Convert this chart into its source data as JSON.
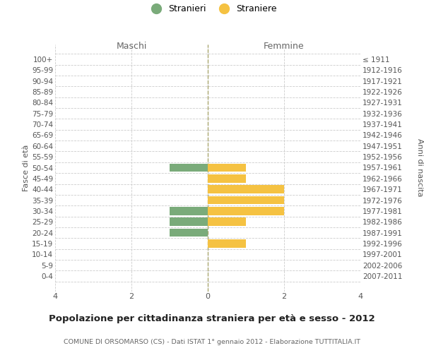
{
  "age_groups": [
    "100+",
    "95-99",
    "90-94",
    "85-89",
    "80-84",
    "75-79",
    "70-74",
    "65-69",
    "60-64",
    "55-59",
    "50-54",
    "45-49",
    "40-44",
    "35-39",
    "30-34",
    "25-29",
    "20-24",
    "15-19",
    "10-14",
    "5-9",
    "0-4"
  ],
  "birth_years": [
    "≤ 1911",
    "1912-1916",
    "1917-1921",
    "1922-1926",
    "1927-1931",
    "1932-1936",
    "1937-1941",
    "1942-1946",
    "1947-1951",
    "1952-1956",
    "1957-1961",
    "1962-1966",
    "1967-1971",
    "1972-1976",
    "1977-1981",
    "1982-1986",
    "1987-1991",
    "1992-1996",
    "1997-2001",
    "2002-2006",
    "2007-2011"
  ],
  "maschi_values": [
    0,
    0,
    0,
    0,
    0,
    0,
    0,
    0,
    0,
    0,
    1,
    0,
    0,
    0,
    1,
    1,
    1,
    0,
    0,
    0,
    0
  ],
  "femmine_values": [
    0,
    0,
    0,
    0,
    0,
    0,
    0,
    0,
    0,
    0,
    1,
    1,
    2,
    2,
    2,
    1,
    0,
    1,
    0,
    0,
    0
  ],
  "color_maschi": "#7aab7a",
  "color_femmine": "#f5c242",
  "xlabel_left": "Maschi",
  "xlabel_right": "Femmine",
  "ylabel_left": "Fasce di età",
  "ylabel_right": "Anni di nascita",
  "legend_maschi": "Stranieri",
  "legend_femmine": "Straniere",
  "title": "Popolazione per cittadinanza straniera per età e sesso - 2012",
  "subtitle": "COMUNE DI ORSOMARSO (CS) - Dati ISTAT 1° gennaio 2012 - Elaborazione TUTTITALIA.IT",
  "xlim": 4,
  "background_color": "#ffffff",
  "grid_color": "#cccccc",
  "bar_height": 0.75
}
